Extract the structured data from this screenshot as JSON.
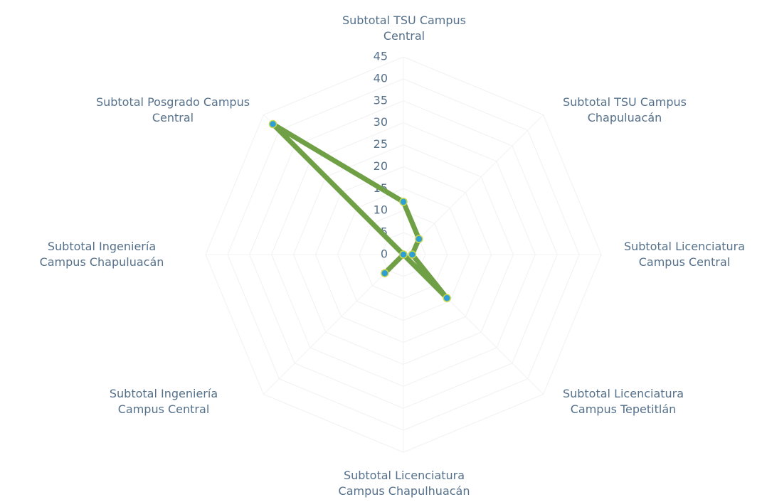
{
  "chart_data": {
    "type": "radar",
    "categories": [
      "Subtotal TSU Campus Central",
      "Subtotal TSU Campus Chapuluacán",
      "Subtotal Licenciatura Campus Central",
      "Subtotal Licenciatura Campus Tepetitlán",
      "Subtotal Licenciatura Campus Chapulhuacán",
      "Subtotal Ingeniería Campus Central",
      "Subtotal Ingeniería Campus Chapuluacán",
      "Subtotal Posgrado Campus Central"
    ],
    "values": [
      12,
      5,
      2,
      14,
      0,
      6,
      0,
      42
    ],
    "color": "#6fa045",
    "marker_color": "#2e9fd6",
    "ylim": [
      0,
      45
    ],
    "yticks": [
      0,
      5,
      10,
      15,
      20,
      25,
      30,
      35,
      40,
      45
    ],
    "grid": true
  }
}
